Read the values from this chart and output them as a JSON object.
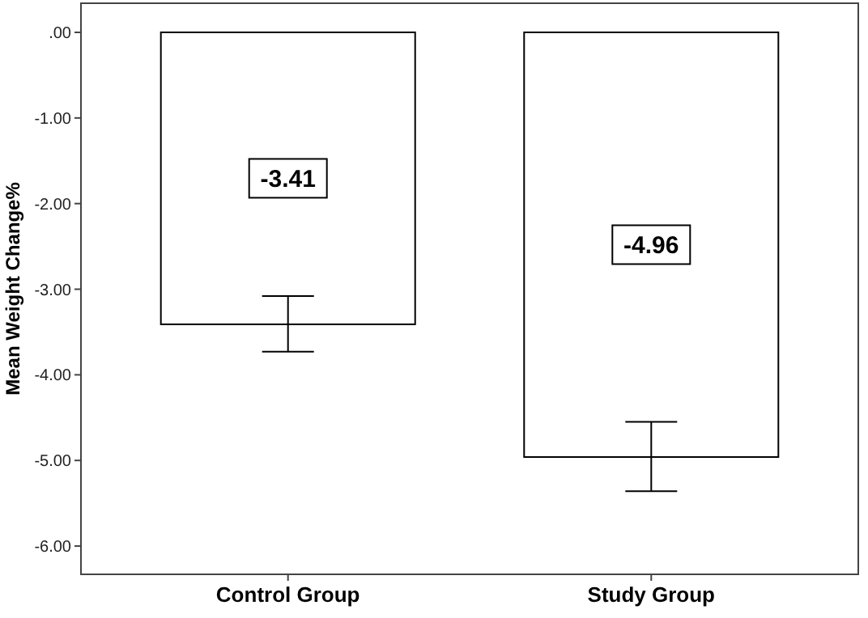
{
  "chart_data": {
    "type": "bar",
    "ylabel": "Mean Weight Change%",
    "categories": [
      "Control Group",
      "Study Group"
    ],
    "values": [
      -3.41,
      -4.96
    ],
    "errors": [
      [
        -3.73,
        -3.08
      ],
      [
        -5.36,
        -4.55
      ]
    ],
    "color": "#ffffff",
    "data_labels": true,
    "ylim": [
      -6.33,
      0.34
    ],
    "yticks": [
      {
        "value": 0,
        "label": ".00"
      },
      {
        "value": -1,
        "label": "-1.00"
      },
      {
        "value": -2,
        "label": "-2.00"
      },
      {
        "value": -3,
        "label": "-3.00"
      },
      {
        "value": -4,
        "label": "-4.00"
      },
      {
        "value": -5,
        "label": "-5.00"
      },
      {
        "value": -6,
        "label": "-6.00"
      }
    ],
    "grid": false
  }
}
